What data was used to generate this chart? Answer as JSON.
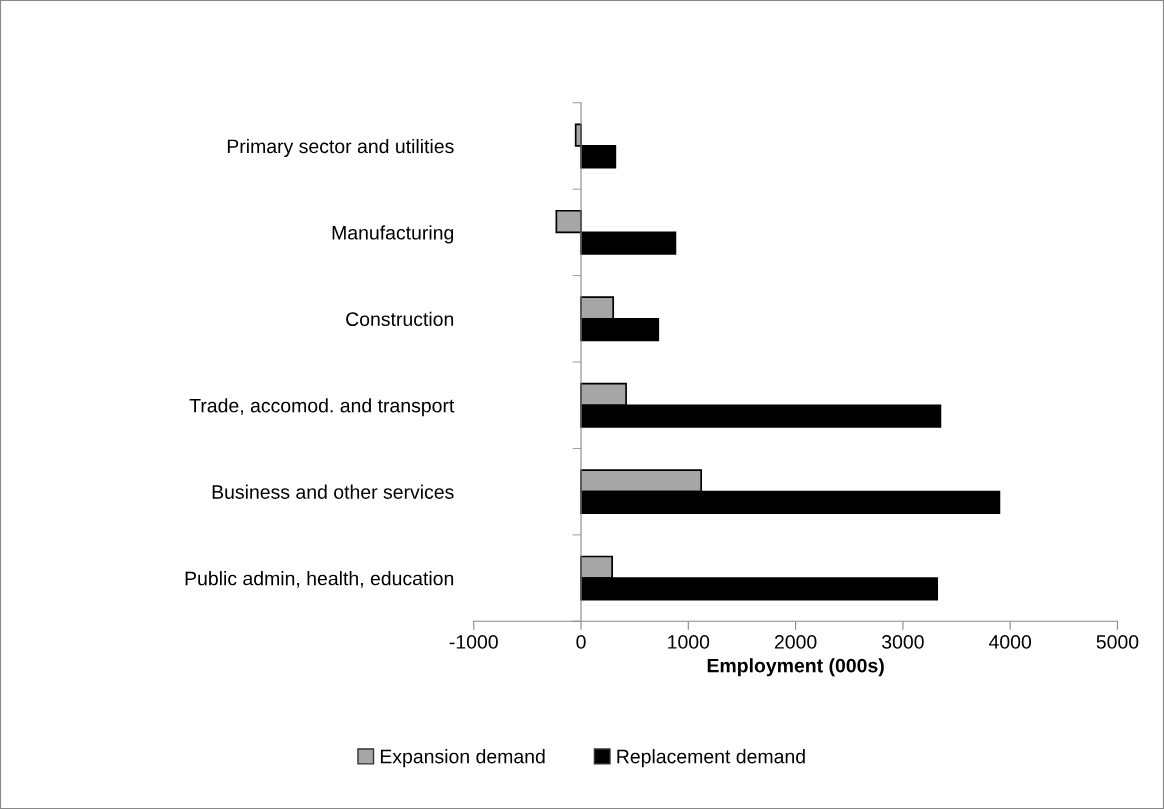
{
  "chart_data": {
    "type": "bar",
    "orientation": "horizontal",
    "xlabel": "Employment (000s)",
    "categories": [
      "Primary sector and utilities",
      "Manufacturing",
      "Construction",
      "Trade, accomod. and transport",
      "Business and other services",
      "Public admin, health, education"
    ],
    "series": [
      {
        "name": "Expansion demand",
        "color": "#a6a6a6",
        "values": [
          -50,
          -230,
          300,
          420,
          1120,
          290
        ]
      },
      {
        "name": "Replacement demand",
        "color": "#000000",
        "values": [
          320,
          880,
          720,
          3350,
          3900,
          3320
        ]
      }
    ],
    "xlim": [
      -1000,
      5000
    ],
    "xticks": [
      -1000,
      0,
      1000,
      2000,
      3000,
      4000,
      5000
    ],
    "legend": "bottom"
  }
}
